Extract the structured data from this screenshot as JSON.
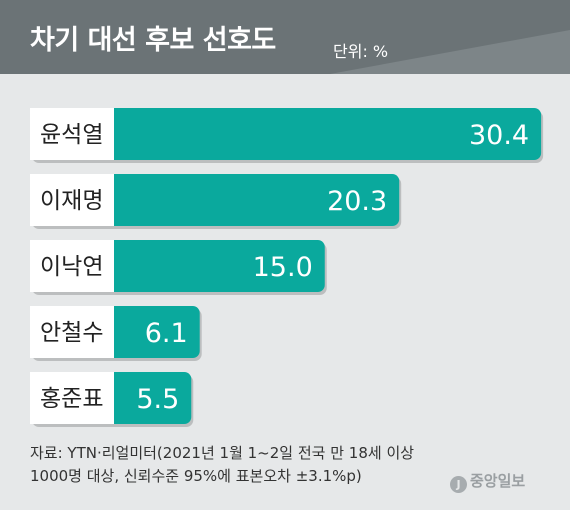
{
  "header": {
    "title": "차기 대선 후보 선호도",
    "unit": "단위: %"
  },
  "colors": {
    "bar": "#0aa99d",
    "header": "#6b7376",
    "label_box": "#ffffff",
    "background": "#e6e8e9"
  },
  "chart_data": {
    "type": "bar",
    "orientation": "horizontal",
    "categories": [
      "윤석열",
      "이재명",
      "이낙연",
      "안철수",
      "홍준표"
    ],
    "values": [
      30.4,
      20.3,
      15.0,
      6.1,
      5.5
    ],
    "value_labels": [
      "30.4",
      "20.3",
      "15.0",
      "6.1",
      "5.5"
    ],
    "title": "차기 대선 후보 선호도",
    "unit": "%",
    "xlabel": "",
    "ylabel": ""
  },
  "footer": {
    "source_line1": "자료: YTN·리얼미터(2021년 1월 1~2일 전국 만 18세 이상",
    "source_line2": "1000명 대상, 신뢰수준 95%에 표본오차 ±3.1%p)",
    "brand": "중앙일보",
    "brand_mark": "J"
  }
}
